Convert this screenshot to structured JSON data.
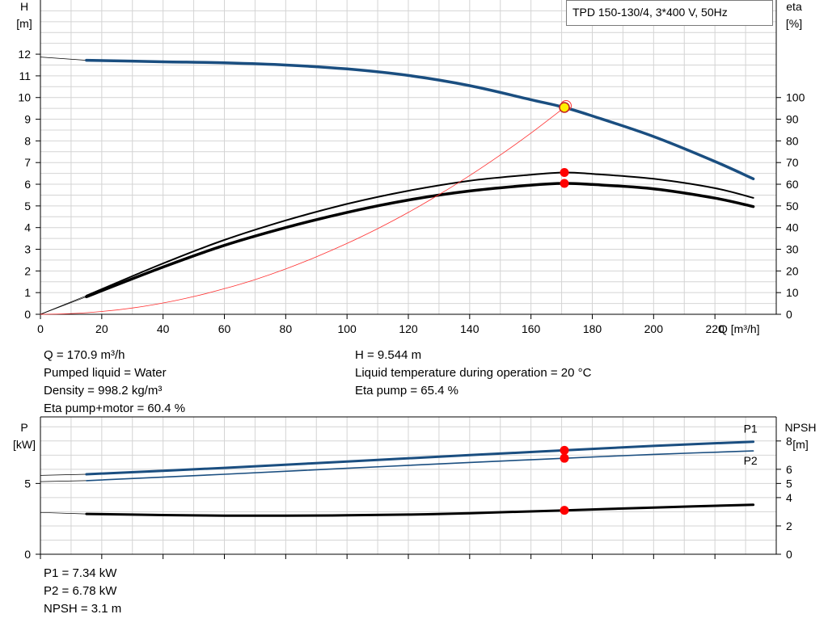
{
  "colors": {
    "blue": "#1a4e80",
    "black": "#000000",
    "red": "#ff0000",
    "grid": "#d4d4d4",
    "eta": "#ff3030",
    "marker_fill": "#ffee00"
  },
  "info_box": {
    "title": "TPD 150-130/4, 3*400 V, 50Hz"
  },
  "chart_data": [
    {
      "id": "head-efficiency",
      "type": "line",
      "xlabel": "Q [m³/h]",
      "ylabel_left": [
        "H",
        "[m]"
      ],
      "ylabel_right": [
        "eta",
        "[%]"
      ],
      "xlim": [
        0,
        240
      ],
      "ylim_left": [
        0,
        14.5
      ],
      "ylim_right": [
        0,
        145
      ],
      "x_ticks": [
        0,
        20,
        40,
        60,
        80,
        100,
        120,
        140,
        160,
        180,
        200,
        220
      ],
      "y_ticks_left": [
        0,
        1,
        2,
        3,
        4,
        5,
        6,
        7,
        8,
        9,
        10,
        11,
        12
      ],
      "y_ticks_right": [
        0,
        10,
        20,
        30,
        40,
        50,
        60,
        70,
        80,
        90,
        100
      ],
      "grid": true,
      "series": [
        {
          "key": "head",
          "axis": "left",
          "color": "blue",
          "width": 3.5,
          "x": [
            15,
            40,
            60,
            80,
            100,
            120,
            140,
            160,
            170.9,
            180,
            200,
            220,
            232.5
          ],
          "y": [
            11.72,
            11.65,
            11.6,
            11.5,
            11.32,
            11.02,
            10.55,
            9.9,
            9.544,
            9.15,
            8.2,
            7.05,
            6.25
          ],
          "extension": {
            "x": [
              0,
              15
            ],
            "y": [
              11.87,
              11.72
            ]
          }
        },
        {
          "key": "eta-pump",
          "axis": "right",
          "color": "black",
          "width": 2,
          "x": [
            15,
            40,
            60,
            80,
            100,
            120,
            140,
            160,
            170.9,
            180,
            200,
            220,
            232.5
          ],
          "y": [
            8.6,
            23.5,
            34.3,
            43.3,
            50.9,
            57.0,
            61.6,
            64.4,
            65.4,
            64.8,
            62.5,
            58.2,
            53.7
          ],
          "extension": {
            "x": [
              0,
              15
            ],
            "y": [
              0,
              8.6
            ]
          }
        },
        {
          "key": "eta-pump-motor",
          "axis": "right",
          "color": "black",
          "width": 3.5,
          "x": [
            15,
            40,
            60,
            80,
            100,
            120,
            140,
            160,
            170.9,
            180,
            200,
            220,
            232.5
          ],
          "y": [
            8.1,
            21.8,
            31.8,
            40.0,
            47.0,
            52.7,
            56.9,
            59.6,
            60.4,
            59.9,
            57.9,
            53.6,
            49.7
          ],
          "extension": {
            "x": [
              0,
              15
            ],
            "y": [
              0,
              8.1
            ]
          }
        },
        {
          "key": "system-curve",
          "axis": "left",
          "color": "eta",
          "width": 0.8,
          "x": [
            0,
            10,
            20,
            30,
            40,
            50,
            60,
            70,
            80,
            90,
            100,
            110,
            120,
            130,
            140,
            150,
            160,
            170.9
          ],
          "y": [
            0,
            0.033,
            0.13,
            0.29,
            0.52,
            0.82,
            1.18,
            1.6,
            2.09,
            2.65,
            3.27,
            3.95,
            4.7,
            5.52,
            6.4,
            7.35,
            8.36,
            9.544
          ]
        }
      ],
      "markers": [
        {
          "axis": "left",
          "x": 170.9,
          "y": 9.544,
          "style": "yellow"
        },
        {
          "axis": "right",
          "x": 170.9,
          "y": 65.4,
          "style": "red"
        },
        {
          "axis": "right",
          "x": 170.9,
          "y": 60.4,
          "style": "red"
        }
      ]
    },
    {
      "id": "power-npsh",
      "type": "line",
      "ylabel_left": [
        "P",
        "[kW]"
      ],
      "ylabel_right": [
        "NPSH",
        "[m]"
      ],
      "xlim": [
        0,
        240
      ],
      "ylim_left": [
        0,
        9.7
      ],
      "ylim_right": [
        0,
        9.7
      ],
      "x_ticks": [
        0,
        20,
        40,
        60,
        80,
        100,
        120,
        140,
        160,
        180,
        200,
        220
      ],
      "y_ticks_left": [
        0,
        5
      ],
      "y_ticks_right": [
        0,
        2,
        4,
        5,
        6,
        8
      ],
      "grid": true,
      "series": [
        {
          "key": "p1",
          "name": "P1",
          "axis": "left",
          "color": "blue",
          "width": 3,
          "x": [
            15,
            60,
            100,
            140,
            170.9,
            200,
            232.5
          ],
          "y": [
            5.65,
            6.1,
            6.55,
            7.0,
            7.34,
            7.65,
            7.95
          ],
          "extension": {
            "x": [
              0,
              15
            ],
            "y": [
              5.57,
              5.65
            ]
          }
        },
        {
          "key": "p2",
          "name": "P2",
          "axis": "left",
          "color": "blue",
          "width": 1.6,
          "x": [
            15,
            60,
            100,
            140,
            170.9,
            200,
            232.5
          ],
          "y": [
            5.2,
            5.65,
            6.07,
            6.48,
            6.78,
            7.05,
            7.3
          ],
          "extension": {
            "x": [
              0,
              15
            ],
            "y": [
              5.13,
              5.2
            ]
          }
        },
        {
          "key": "npsh",
          "axis": "right",
          "color": "black",
          "width": 3,
          "x": [
            15,
            40,
            60,
            80,
            100,
            120,
            140,
            170.9,
            200,
            232.5
          ],
          "y": [
            2.85,
            2.77,
            2.73,
            2.72,
            2.75,
            2.8,
            2.9,
            3.1,
            3.3,
            3.5
          ],
          "extension": {
            "x": [
              0,
              15
            ],
            "y": [
              2.95,
              2.85
            ]
          }
        }
      ],
      "markers": [
        {
          "axis": "left",
          "x": 170.9,
          "y": 7.34,
          "style": "red"
        },
        {
          "axis": "left",
          "x": 170.9,
          "y": 6.78,
          "style": "red"
        },
        {
          "axis": "right",
          "x": 170.9,
          "y": 3.1,
          "style": "red"
        }
      ]
    }
  ],
  "readout_top": {
    "left": [
      "Q = 170.9 m³/h",
      "Pumped liquid = Water",
      "Density = 998.2 kg/m³",
      "Eta pump+motor = 60.4 %"
    ],
    "right": [
      "H = 9.544 m",
      "Liquid temperature during operation = 20 °C",
      "Eta pump = 65.4 %"
    ]
  },
  "readout_bottom": {
    "left": [
      "P1 = 7.34 kW",
      "P2 = 6.78 kW",
      "NPSH = 3.1 m"
    ]
  }
}
